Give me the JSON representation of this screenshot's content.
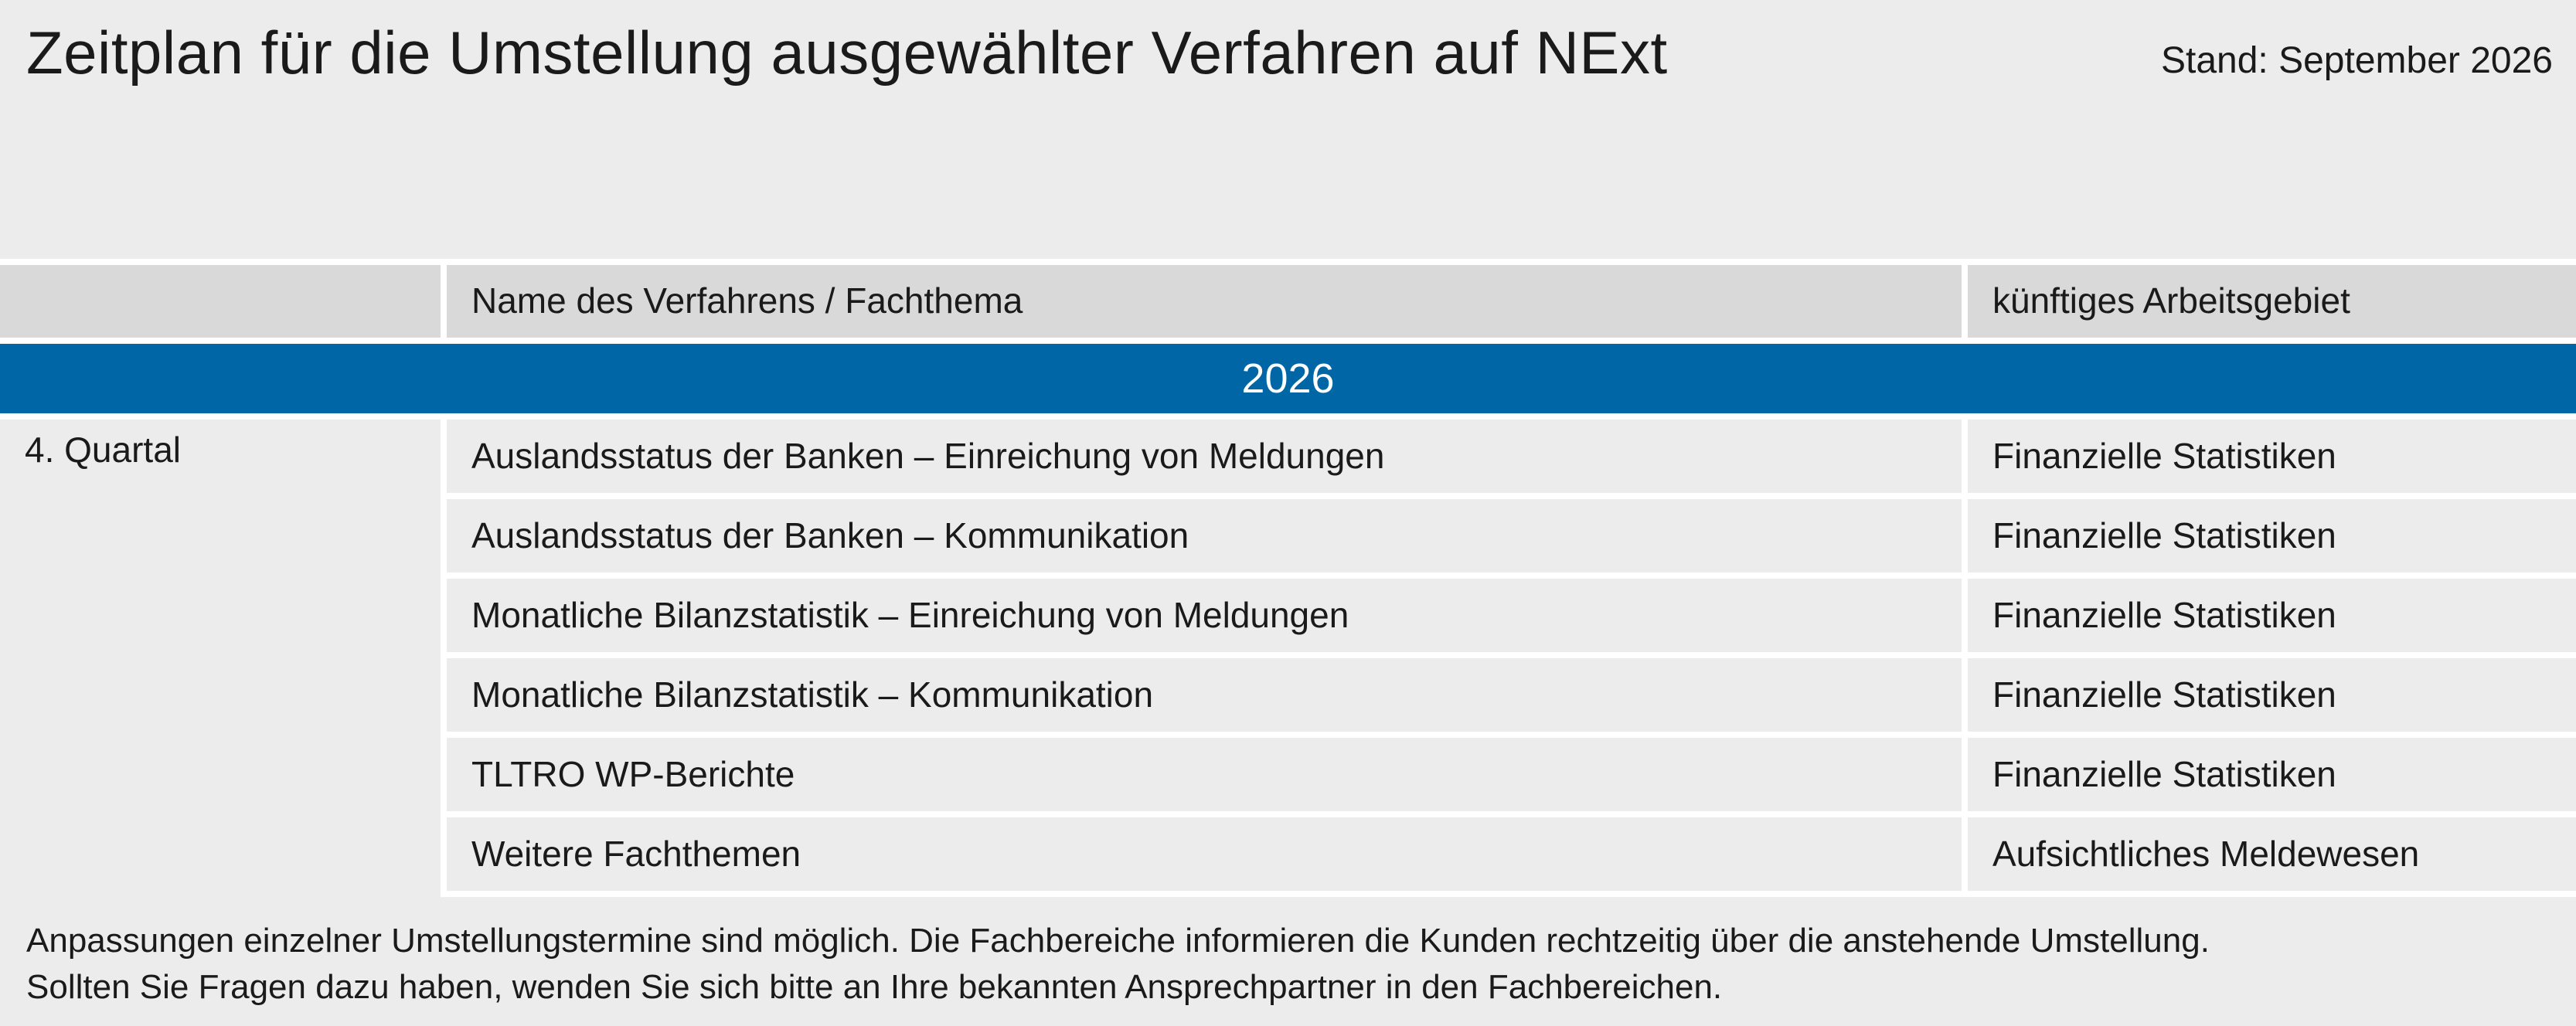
{
  "header": {
    "title": "Zeitplan für die Umstellung ausgewählter Verfahren auf NExt",
    "stand": "Stand: September 2026"
  },
  "table": {
    "columns": [
      "",
      "Name des Verfahrens / Fachthema",
      "künftiges Arbeitsgebiet"
    ],
    "year": "2026",
    "quarter": "4. Quartal",
    "rows": [
      {
        "name": "Auslandsstatus der Banken – Einreichung von Meldungen",
        "area": "Finanzielle Statistiken"
      },
      {
        "name": "Auslandsstatus der Banken – Kommunikation",
        "area": "Finanzielle Statistiken"
      },
      {
        "name": "Monatliche Bilanzstatistik – Einreichung von Meldungen",
        "area": "Finanzielle Statistiken"
      },
      {
        "name": "Monatliche Bilanzstatistik – Kommunikation",
        "area": "Finanzielle Statistiken"
      },
      {
        "name": "TLTRO WP-Berichte",
        "area": "Finanzielle Statistiken"
      },
      {
        "name": "Weitere Fachthemen",
        "area": "Aufsichtliches Meldewesen"
      }
    ]
  },
  "footnote": {
    "line1": "Anpassungen einzelner Umstellungstermine sind möglich. Die Fachbereiche informieren die Kunden rechtzeitig über die anstehende Umstellung.",
    "line2": "Sollten Sie Fragen dazu haben, wenden Sie sich bitte an Ihre bekannten Ansprechpartner in den Fachbereichen."
  },
  "colors": {
    "background": "#ececec",
    "header_row": "#d9d9d9",
    "year_band": "#0066a6"
  }
}
